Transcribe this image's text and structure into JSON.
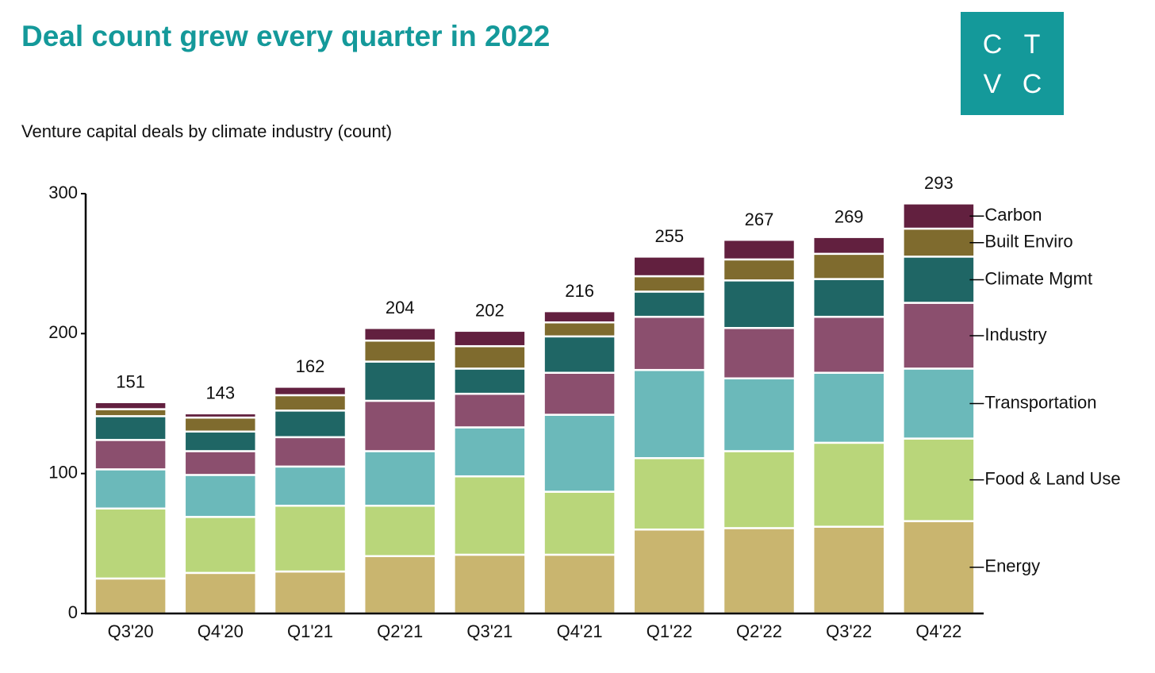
{
  "chart_data": {
    "type": "stacked_bar",
    "title": "Deal count grew every quarter in 2022",
    "subtitle": "Venture capital deals by climate industry (count)",
    "logo": [
      "C",
      "T",
      "V",
      "C"
    ],
    "categories": [
      "Q3'20",
      "Q4'20",
      "Q1'21",
      "Q2'21",
      "Q3'21",
      "Q4'21",
      "Q1'22",
      "Q2'22",
      "Q3'22",
      "Q4'22"
    ],
    "series": [
      {
        "name": "Energy",
        "color": "#c9b56f",
        "values": [
          25,
          29,
          30,
          41,
          42,
          42,
          60,
          61,
          62,
          66
        ]
      },
      {
        "name": "Food & Land Use",
        "color": "#b9d67a",
        "values": [
          50,
          40,
          47,
          36,
          56,
          45,
          51,
          55,
          60,
          59
        ]
      },
      {
        "name": "Transportation",
        "color": "#6bb9ba",
        "values": [
          28,
          30,
          28,
          39,
          35,
          55,
          63,
          52,
          50,
          50
        ]
      },
      {
        "name": "Industry",
        "color": "#8b4f6e",
        "values": [
          21,
          17,
          21,
          36,
          24,
          30,
          38,
          36,
          40,
          47
        ]
      },
      {
        "name": "Climate Mgmt",
        "color": "#1f6665",
        "values": [
          17,
          14,
          19,
          28,
          18,
          26,
          18,
          34,
          27,
          33
        ]
      },
      {
        "name": "Built Enviro",
        "color": "#7f6b2e",
        "values": [
          5,
          10,
          11,
          15,
          16,
          10,
          11,
          15,
          18,
          20
        ]
      },
      {
        "name": "Carbon",
        "color": "#62203f",
        "values": [
          5,
          3,
          6,
          9,
          11,
          8,
          14,
          14,
          12,
          18
        ]
      }
    ],
    "totals": [
      151,
      143,
      162,
      204,
      202,
      216,
      255,
      267,
      269,
      293
    ],
    "ylim": [
      0,
      300
    ],
    "yticks": [
      0,
      100,
      200,
      300
    ],
    "grid": false
  }
}
